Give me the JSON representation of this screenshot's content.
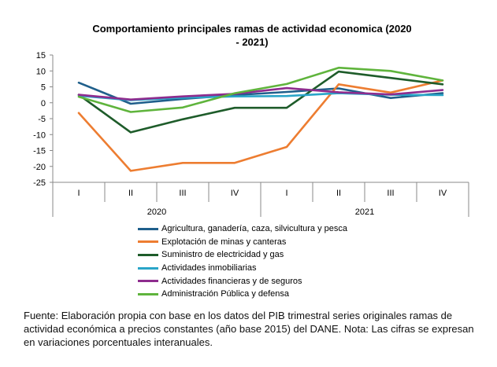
{
  "chart_data": {
    "type": "line",
    "title": "Comportamiento principales ramas de actividad economica (2020 - 2021)",
    "xlabel": "",
    "ylabel": "",
    "ylim": [
      -25,
      15
    ],
    "yticks": [
      15,
      10,
      5,
      0,
      -5,
      -10,
      -15,
      -20,
      -25
    ],
    "categories": [
      "I",
      "II",
      "III",
      "IV",
      "I",
      "II",
      "III",
      "IV"
    ],
    "groups": [
      {
        "label": "2020",
        "span": [
          0,
          3
        ]
      },
      {
        "label": "2021",
        "span": [
          4,
          7
        ]
      }
    ],
    "grid": false,
    "legend_position": "bottom",
    "series": [
      {
        "name": "Agricultura, ganadería, caza, silvicultura y pesca",
        "color": "#1f5f8b",
        "values": [
          6.3,
          -0.3,
          1.2,
          2.4,
          3.4,
          4.5,
          1.5,
          3.0
        ]
      },
      {
        "name": "Explotación de minas y canteras",
        "color": "#ed7d31",
        "values": [
          -3.2,
          -21.4,
          -18.9,
          -18.9,
          -13.9,
          5.8,
          3.2,
          7.0
        ]
      },
      {
        "name": "Suministro de electricidad y gas",
        "color": "#1e5c2a",
        "values": [
          2.5,
          -9.3,
          -5.2,
          -1.6,
          -1.6,
          9.8,
          7.8,
          5.8
        ]
      },
      {
        "name": "Actividades inmobiliarias",
        "color": "#2aa5c8",
        "values": [
          2.2,
          0.8,
          1.6,
          2.0,
          2.1,
          3.0,
          2.5,
          2.4
        ]
      },
      {
        "name": "Actividades financieras y de seguros",
        "color": "#8e2c8e",
        "values": [
          2.5,
          1.0,
          2.0,
          2.8,
          4.6,
          3.3,
          2.6,
          4.0
        ]
      },
      {
        "name": "Administración Pública y defensa",
        "color": "#5fb43c",
        "values": [
          1.9,
          -2.9,
          -1.5,
          3.0,
          5.9,
          11.0,
          10.0,
          7.0
        ]
      }
    ]
  },
  "source_note": "Fuente: Elaboración propia con base en los datos del PIB trimestral series originales ramas de actividad económica a precios constantes (año base 2015) del DANE. Nota: Las cifras se expresan en variaciones porcentuales interanuales."
}
